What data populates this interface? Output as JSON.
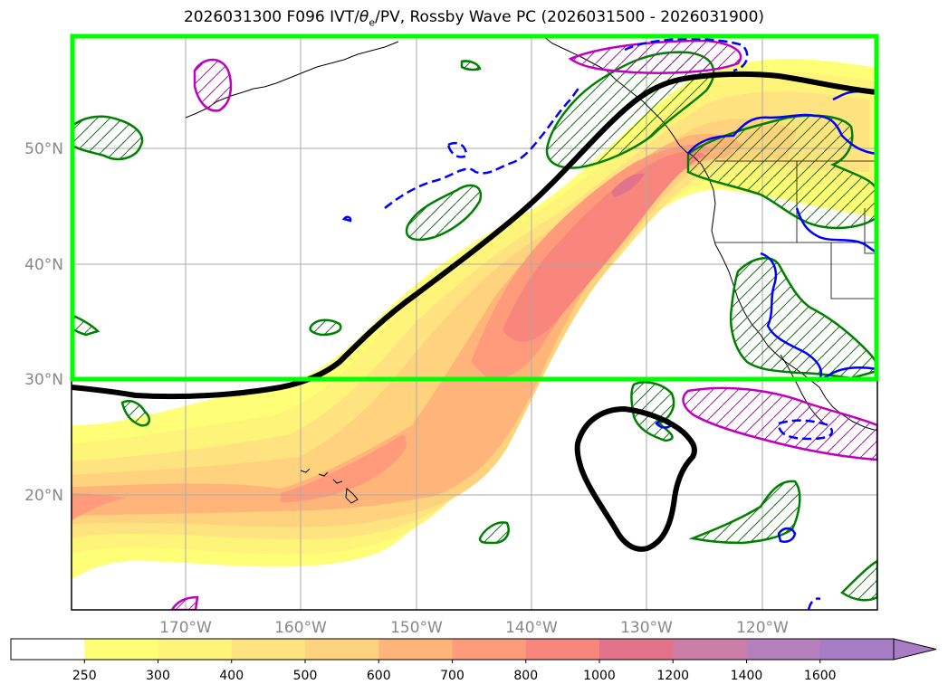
{
  "title": {
    "prefix": "2026031300 F096 IVT/",
    "theta": "θ",
    "theta_sub": "e",
    "suffix": "/PV, Rossby Wave PC (2026031500 - 2026031900)"
  },
  "map": {
    "lat_labels": [
      "50°N",
      "40°N",
      "30°N",
      "20°N"
    ],
    "lon_labels": [
      "170°W",
      "160°W",
      "150°W",
      "140°W",
      "130°W",
      "120°W"
    ],
    "lat_values": [
      50,
      40,
      30,
      20
    ],
    "lon_values": [
      -170,
      -160,
      -150,
      -140,
      -130,
      -120
    ],
    "lat_range": [
      10,
      60
    ],
    "lon_range": [
      -180,
      -110
    ],
    "highlight_box": {
      "lat_range": [
        30,
        60
      ],
      "lon_range": [
        -180,
        -110
      ],
      "color": "#00ff00"
    }
  },
  "colorbar": {
    "levels": [
      "250",
      "300",
      "400",
      "500",
      "600",
      "700",
      "800",
      "1000",
      "1200",
      "1400",
      "1600"
    ],
    "colors": [
      "#ffffff",
      "#ffff77",
      "#fff47a",
      "#ffe380",
      "#ffd27e",
      "#ffb57a",
      "#ff9a7a",
      "#f8867c",
      "#e3738a",
      "#cd7ea8",
      "#b580bb",
      "#a77dc6"
    ]
  },
  "colors": {
    "pv_contour": "#008000",
    "theta_pos": "#c000c0",
    "theta_neg": "#0000ff",
    "rossby_pc": "#000000",
    "gridline": "#aaaaaa"
  }
}
